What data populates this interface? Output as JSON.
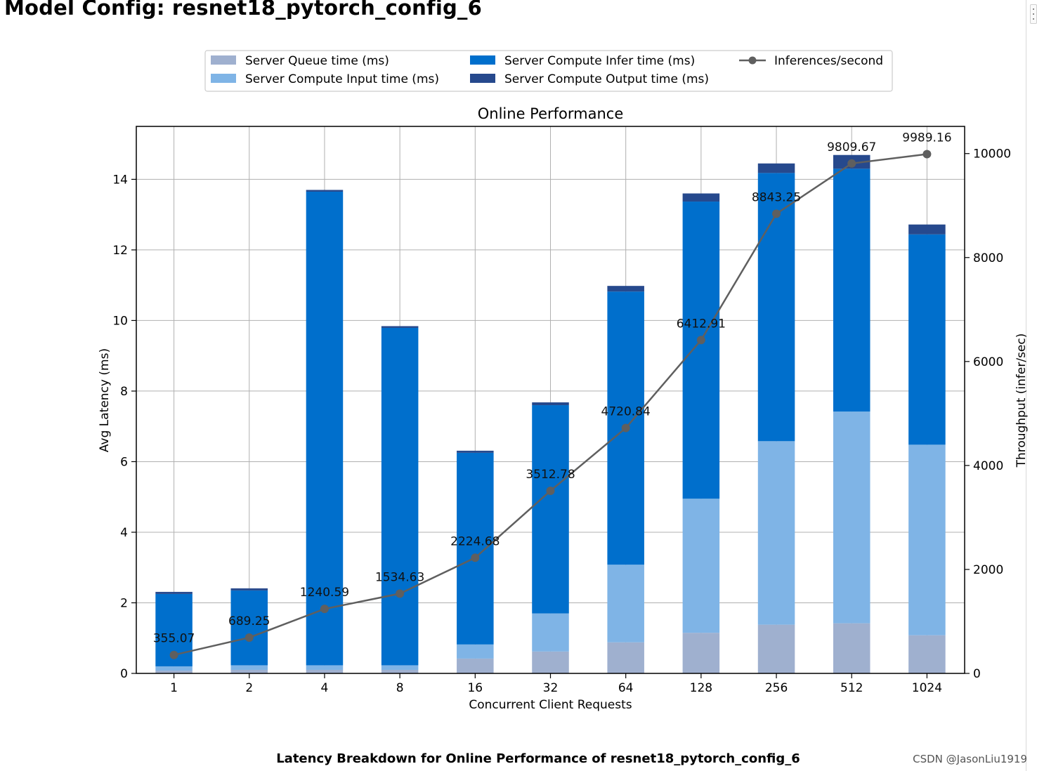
{
  "page": {
    "title": "Model Config: resnet18_pytorch_config_6",
    "caption": "Latency Breakdown for Online Performance of resnet18_pytorch_config_6",
    "watermark": "CSDN @JasonLiu1919"
  },
  "colors": {
    "queue": "#9fb0cf",
    "input": "#7fb4e6",
    "infer": "#006fcc",
    "output": "#26498d",
    "throughput": "#5f5f5f",
    "grid": "#b0b0b0"
  },
  "chart_data": {
    "type": "bar",
    "stacked": true,
    "title": "Online Performance",
    "xlabel": "Concurrent Client Requests",
    "ylabel": "Avg Latency (ms)",
    "y2label": "Throughput (infer/sec)",
    "ylim": [
      0,
      15.5
    ],
    "y2lim": [
      0,
      10523
    ],
    "yticks": [
      0,
      2,
      4,
      6,
      8,
      10,
      12,
      14
    ],
    "y2ticks": [
      0,
      2000,
      4000,
      6000,
      8000,
      10000
    ],
    "grid": true,
    "legend_position": "top-center",
    "categories": [
      "1",
      "2",
      "4",
      "8",
      "16",
      "32",
      "64",
      "128",
      "256",
      "512",
      "1024"
    ],
    "series": [
      {
        "name": "Server Queue time (ms)",
        "color_key": "queue",
        "values": [
          0.08,
          0.1,
          0.1,
          0.1,
          0.42,
          0.62,
          0.88,
          1.15,
          1.38,
          1.42,
          1.08
        ]
      },
      {
        "name": "Server Compute Input time (ms)",
        "color_key": "input",
        "values": [
          0.12,
          0.13,
          0.13,
          0.13,
          0.4,
          1.08,
          2.2,
          3.8,
          5.2,
          6.0,
          5.4
        ]
      },
      {
        "name": "Server Compute Infer time (ms)",
        "color_key": "infer",
        "values": [
          2.05,
          2.12,
          13.42,
          9.56,
          5.43,
          5.9,
          7.74,
          8.42,
          7.6,
          6.88,
          5.96
        ]
      },
      {
        "name": "Server Compute Output time (ms)",
        "color_key": "output",
        "values": [
          0.06,
          0.06,
          0.05,
          0.05,
          0.06,
          0.08,
          0.16,
          0.23,
          0.27,
          0.39,
          0.28
        ]
      }
    ],
    "line": {
      "name": "Inferences/second",
      "color_key": "throughput",
      "values": [
        355.07,
        689.25,
        1240.59,
        1534.63,
        2224.68,
        3512.78,
        4720.84,
        6412.91,
        8843.25,
        9809.67,
        9989.16
      ],
      "labels": [
        "355.07",
        "689.25",
        "1240.59",
        "1534.63",
        "2224.68",
        "3512.78",
        "4720.84",
        "6412.91",
        "8843.25",
        "9809.67",
        "9989.16"
      ]
    }
  }
}
